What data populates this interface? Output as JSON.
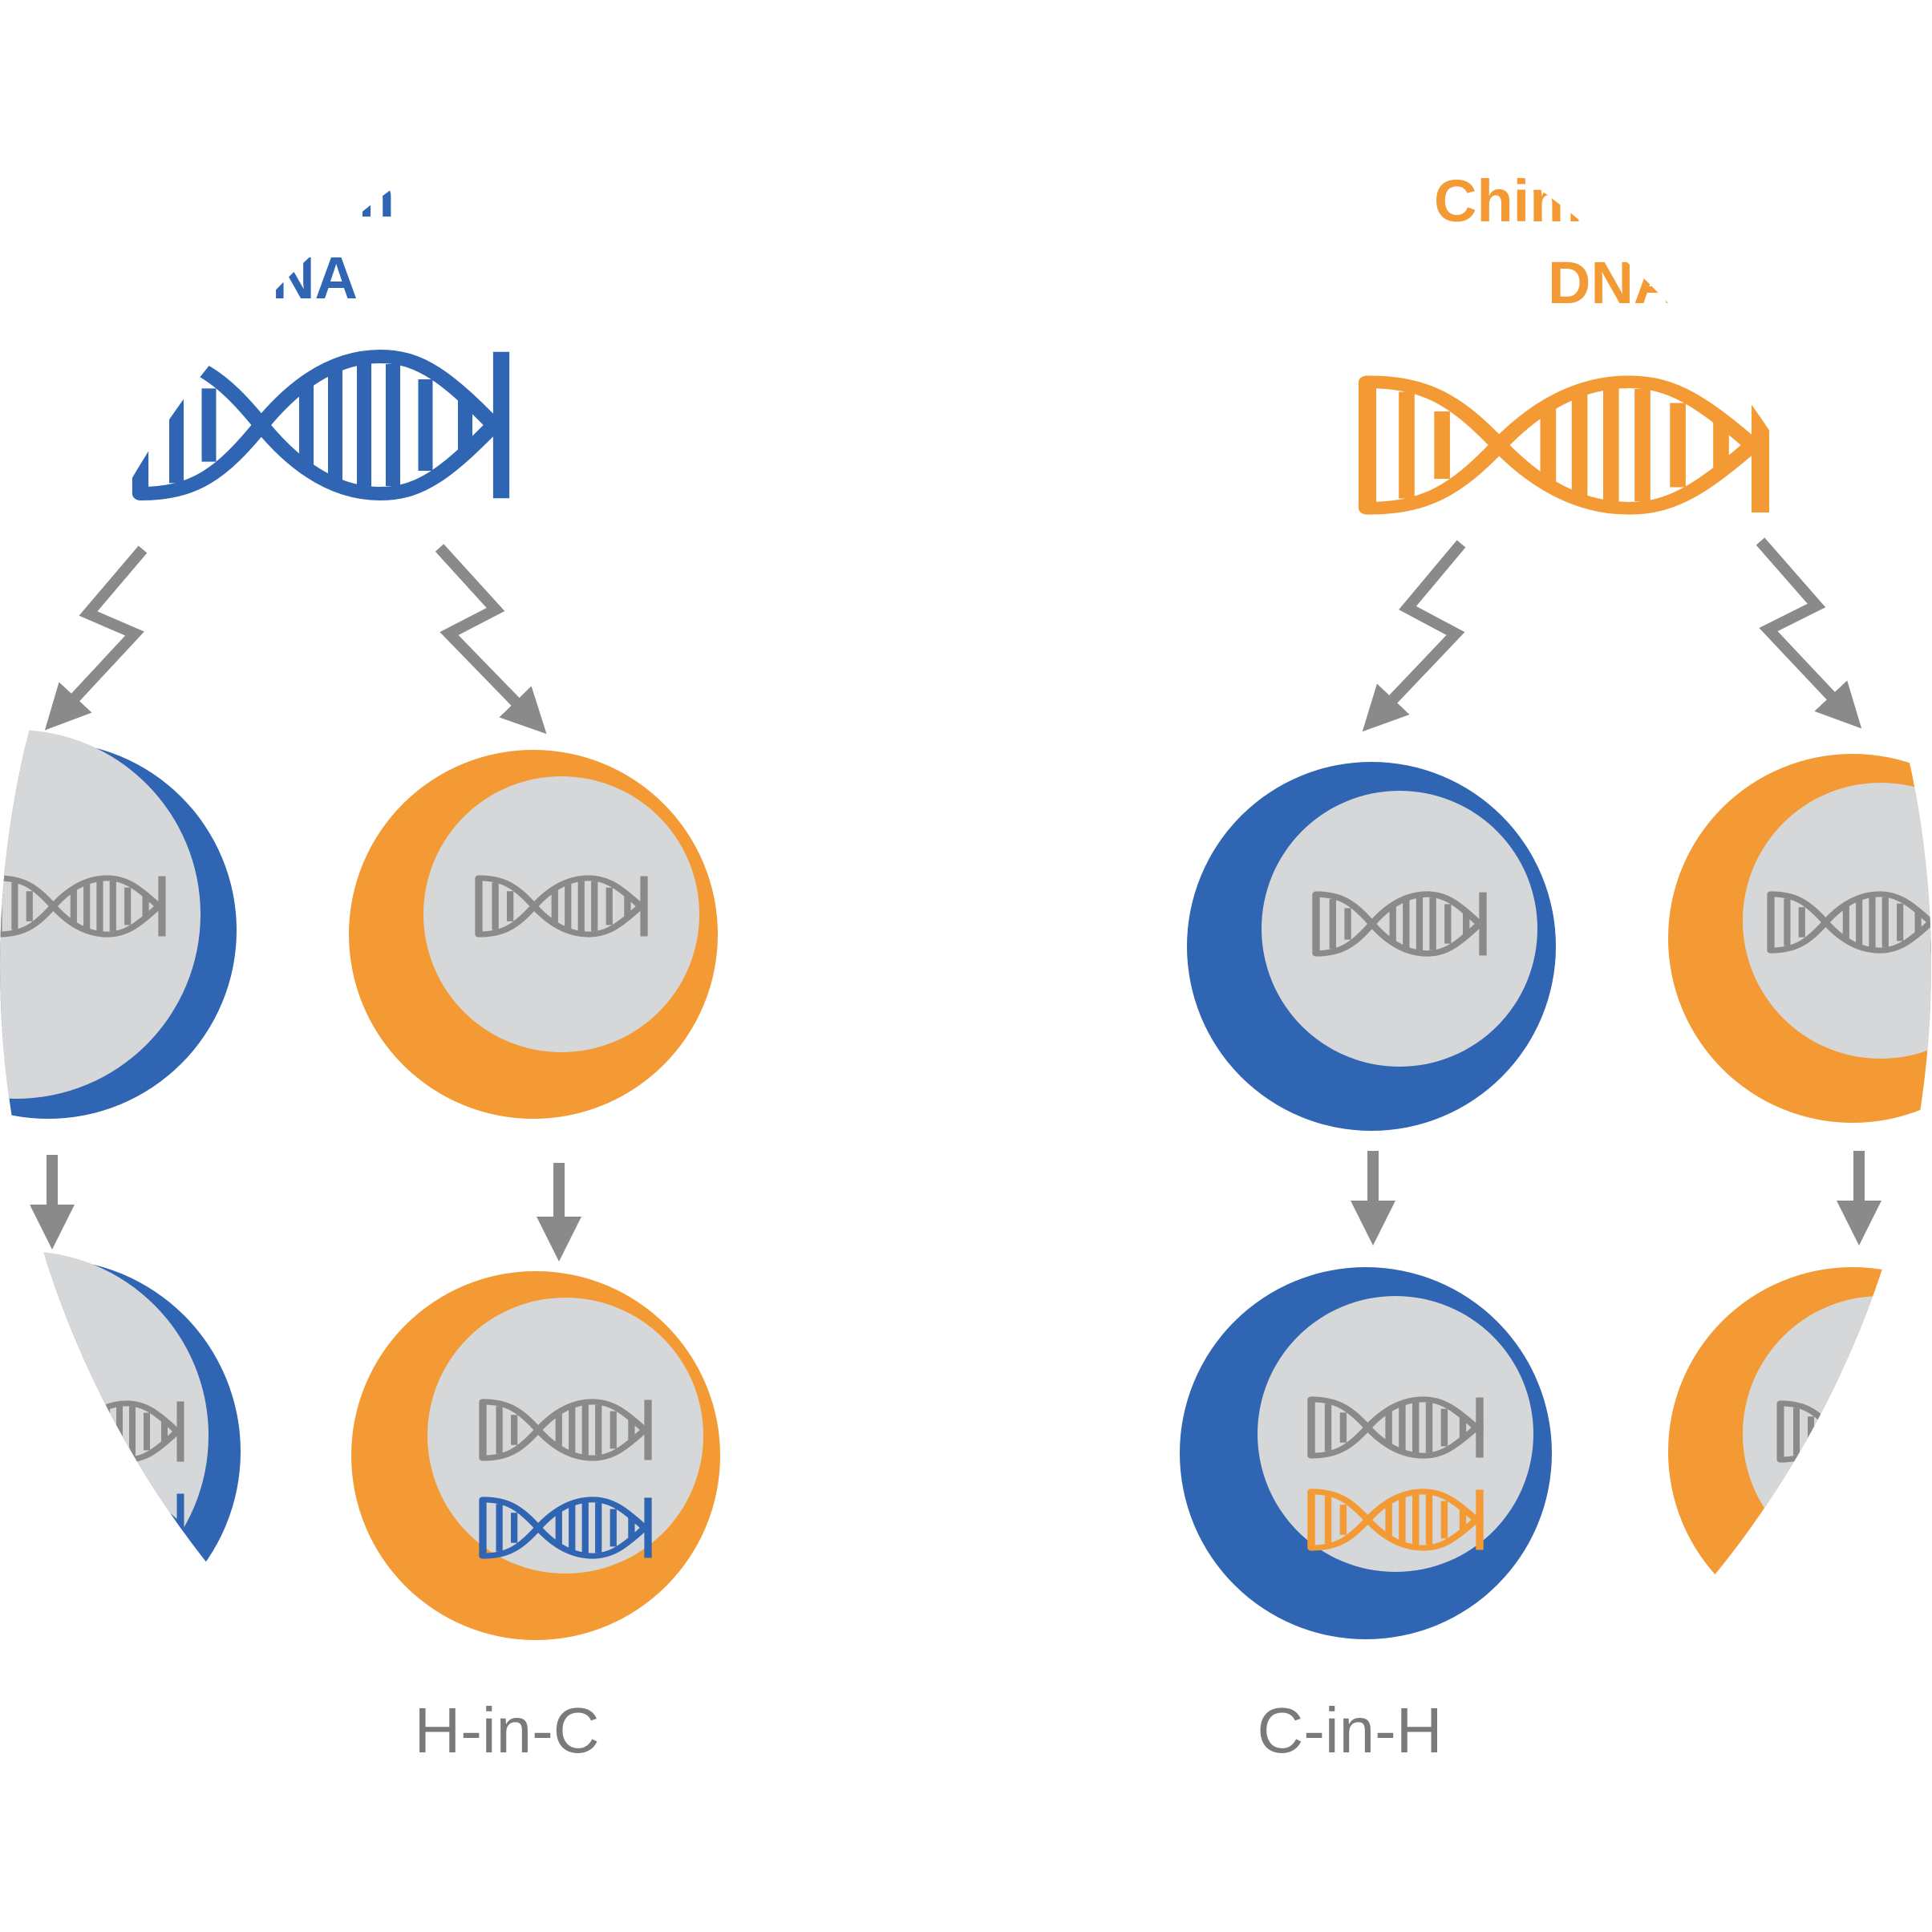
{
  "colors": {
    "blue": "#2F65B2",
    "orange": "#F49A34",
    "gray": "#8A8A8A",
    "nucleus": "#D6D7D9",
    "background": "#FFFFFF"
  },
  "labels": {
    "human_dna_title_line1": "n",
    "human_dna_title_line2": "NA",
    "chimp_dna_title_line1": "Chim",
    "chimp_dna_title_line2": "DNA",
    "h_in_c": "H-in-C",
    "c_in_h": "C-in-H"
  },
  "icons": {
    "dna_helix": "dna-helix-icon",
    "zigzag_arrow": "zigzag-arrow-icon",
    "down_arrow": "down-arrow-icon"
  }
}
